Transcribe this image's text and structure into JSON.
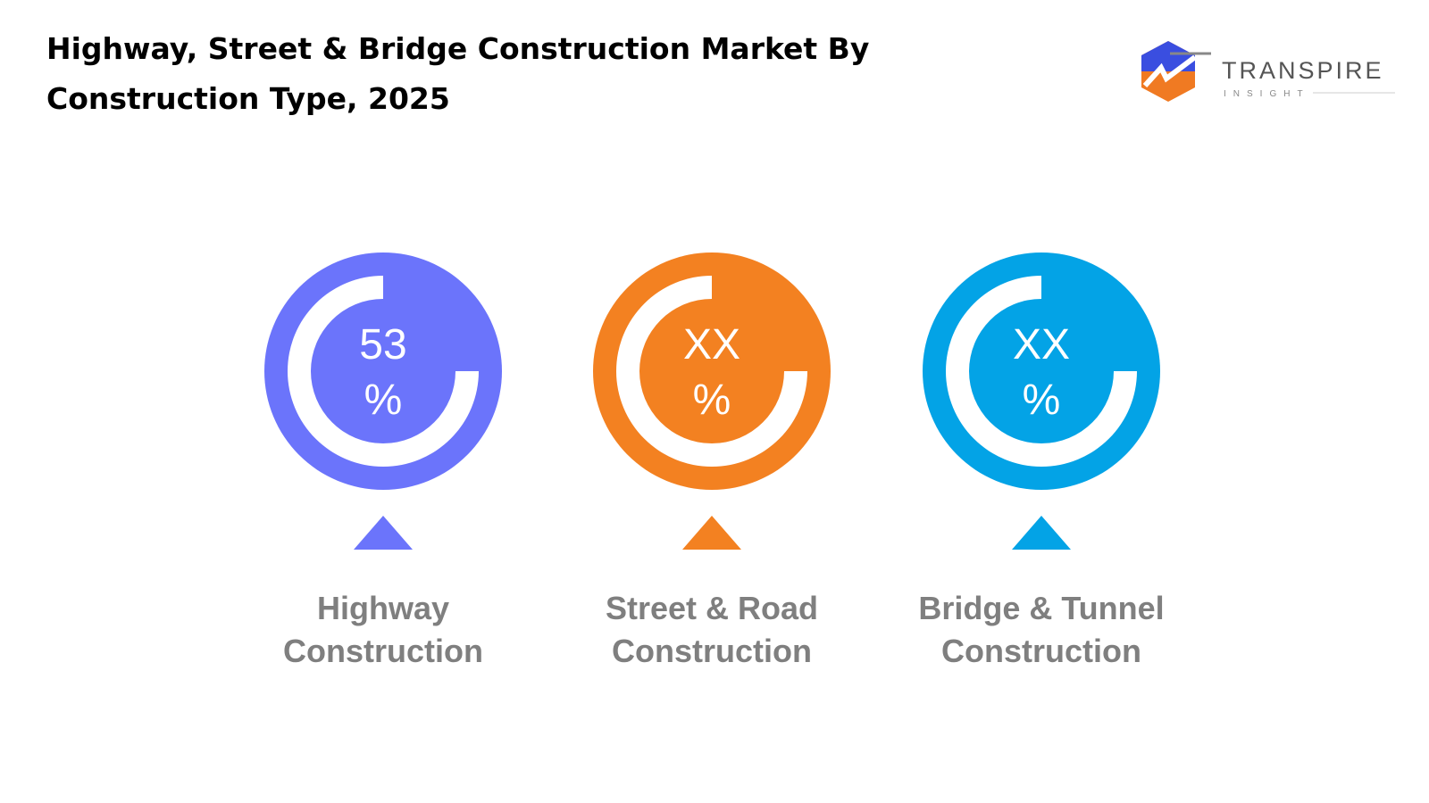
{
  "header": {
    "title_lines": [
      "Highway, Street & Bridge Construction Market By",
      "Construction Type, 2025"
    ]
  },
  "logo": {
    "name": "TRANSPIRE",
    "tagline": "INSIGHT"
  },
  "items": [
    {
      "value": "53",
      "unit": "%",
      "label_lines": [
        "Highway",
        "Construction"
      ],
      "color": "#6b74fb"
    },
    {
      "value": "XX",
      "unit": "%",
      "label_lines": [
        "Street & Road",
        "Construction"
      ],
      "color": "#f38121"
    },
    {
      "value": "XX",
      "unit": "%",
      "label_lines": [
        "Bridge & Tunnel",
        "Construction"
      ],
      "color": "#03a3e6"
    }
  ]
}
